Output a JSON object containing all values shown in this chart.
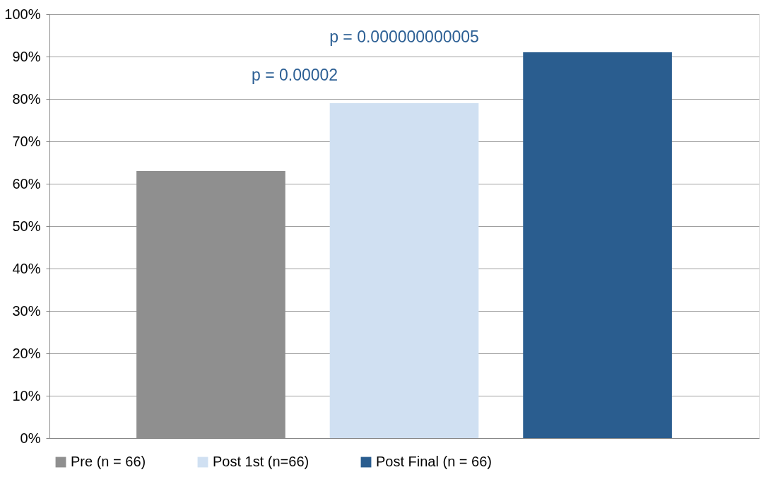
{
  "chart_data": {
    "type": "bar",
    "categories": [
      null,
      null,
      null
    ],
    "series": [
      {
        "name": "Pre (n = 66)",
        "color": "#8f8f8f",
        "values": [
          63,
          null,
          null
        ]
      },
      {
        "name": "Post 1st (n=66)",
        "color": "#d0e0f2",
        "values": [
          null,
          79,
          null
        ]
      },
      {
        "name": "Post Final (n = 66)",
        "color": "#2a5d8f",
        "values": [
          null,
          null,
          91
        ]
      }
    ],
    "ylim": [
      0,
      100
    ],
    "yticks": [
      {
        "value": 0,
        "label": "0%"
      },
      {
        "value": 10,
        "label": "10%"
      },
      {
        "value": 20,
        "label": "20%"
      },
      {
        "value": 30,
        "label": "30%"
      },
      {
        "value": 40,
        "label": "40%"
      },
      {
        "value": 50,
        "label": "50%"
      },
      {
        "value": 60,
        "label": "60%"
      },
      {
        "value": 70,
        "label": "70%"
      },
      {
        "value": 80,
        "label": "80%"
      },
      {
        "value": 90,
        "label": "90%"
      },
      {
        "value": 100,
        "label": "100%"
      }
    ],
    "grid": "y",
    "legend": "bottom",
    "annotations": [
      "p = 0.00002",
      "p = 0.000000000005"
    ]
  }
}
